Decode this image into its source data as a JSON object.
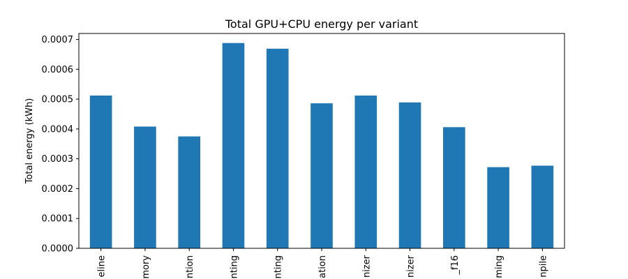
{
  "chart_data": {
    "type": "bar",
    "title": "Total GPU+CPU energy per variant",
    "xlabel": "",
    "ylabel": "Total energy (kWh)",
    "categories": [
      "eline",
      "mory",
      "ntion",
      "nting",
      "nting",
      "ation",
      "nizer",
      "nizer",
      "_f16",
      "ming",
      "npile"
    ],
    "values": [
      0.000512,
      0.000408,
      0.000375,
      0.000688,
      0.000669,
      0.000486,
      0.000512,
      0.000489,
      0.000406,
      0.000272,
      0.000277
    ],
    "ylim": [
      0,
      0.00072
    ],
    "yticks": [
      "0.0000",
      "0.0001",
      "0.0002",
      "0.0003",
      "0.0004",
      "0.0005",
      "0.0006",
      "0.0007"
    ],
    "ytick_values": [
      0,
      0.0001,
      0.0002,
      0.0003,
      0.0004,
      0.0005,
      0.0006,
      0.0007
    ],
    "bar_color": "#1f77b4",
    "grid": false,
    "legend": "none"
  }
}
